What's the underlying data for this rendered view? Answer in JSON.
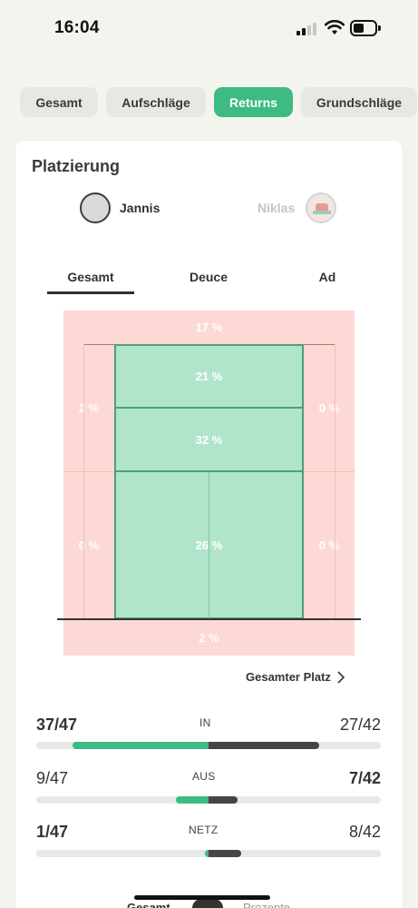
{
  "status_bar": {
    "time": "16:04"
  },
  "tabs": [
    {
      "label": "Gesamt",
      "active": false
    },
    {
      "label": "Aufschläge",
      "active": false
    },
    {
      "label": "Returns",
      "active": true
    },
    {
      "label": "Grundschläge",
      "active": false
    }
  ],
  "section_title": "Platzierung",
  "players": {
    "left": "Jannis",
    "right": "Niklas"
  },
  "subtabs": [
    {
      "label": "Gesamt",
      "active": true
    },
    {
      "label": "Deuce",
      "active": false
    },
    {
      "label": "Ad",
      "active": false
    }
  ],
  "court": {
    "long": "17 %",
    "left_top": "2 %",
    "right_top": "0 %",
    "service_line": "21 %",
    "mid": "32 %",
    "left_bottom": "0 %",
    "center": "26 %",
    "right_bottom": "0 %",
    "net": "2 %"
  },
  "court_link": "Gesamter Platz",
  "stats": [
    {
      "label": "IN",
      "left": "37/47",
      "right": "27/42",
      "left_bold": true,
      "right_bold": false,
      "left_fraction": 0.787,
      "right_fraction": 0.643
    },
    {
      "label": "AUS",
      "left": "9/47",
      "right": "7/42",
      "left_bold": false,
      "right_bold": true,
      "left_fraction": 0.191,
      "right_fraction": 0.167
    },
    {
      "label": "NETZ",
      "left": "1/47",
      "right": "8/42",
      "left_bold": true,
      "right_bold": false,
      "left_fraction": 0.021,
      "right_fraction": 0.19
    }
  ],
  "colors": {
    "accent": "#3dbb82",
    "out_zone": "#fdd9d5",
    "in_zone": "#b1e5cb",
    "opponent_bar": "#454545"
  },
  "bottom_toggle": {
    "left": "Gesamt",
    "right": "Prozente"
  }
}
